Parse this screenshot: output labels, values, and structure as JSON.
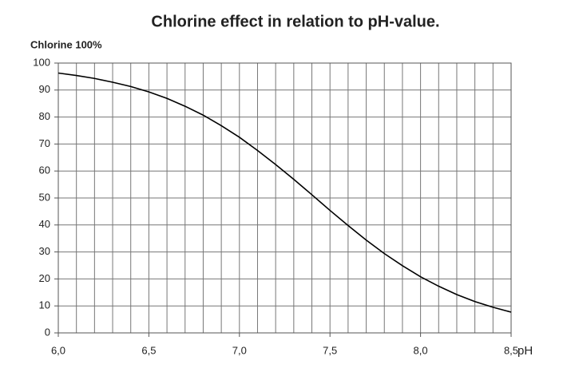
{
  "chart_data": {
    "type": "line",
    "title": "Chlorine effect in relation to pH-value.",
    "y_label": "Chlorine 100%",
    "x_label": "pH",
    "x": [
      6.0,
      6.1,
      6.2,
      6.3,
      6.4,
      6.5,
      6.6,
      6.7,
      6.8,
      6.9,
      7.0,
      7.1,
      7.2,
      7.3,
      7.4,
      7.5,
      7.6,
      7.7,
      7.8,
      7.9,
      8.0,
      8.1,
      8.2,
      8.3,
      8.4,
      8.5
    ],
    "series": [
      {
        "color": "#000000",
        "values": [
          96.3,
          95.4,
          94.3,
          92.9,
          91.3,
          89.3,
          86.9,
          84.0,
          80.7,
          76.8,
          72.5,
          67.6,
          62.4,
          56.9,
          51.2,
          45.4,
          39.8,
          34.4,
          29.4,
          24.9,
          20.8,
          17.3,
          14.2,
          11.6,
          9.5,
          7.7
        ]
      }
    ],
    "xlim": [
      6.0,
      8.5
    ],
    "ylim": [
      0,
      100
    ],
    "xticks": [
      {
        "value": 6.0,
        "label": "6,0"
      },
      {
        "value": 6.5,
        "label": "6,5"
      },
      {
        "value": 7.0,
        "label": "7,0"
      },
      {
        "value": 7.5,
        "label": "7,5"
      },
      {
        "value": 8.0,
        "label": "8,0"
      },
      {
        "value": 8.5,
        "label": "8,5"
      }
    ],
    "x_minor_ticks": [
      6.0,
      6.1,
      6.2,
      6.3,
      6.4,
      6.5,
      6.6,
      6.7,
      6.8,
      6.9,
      7.0,
      7.1,
      7.2,
      7.3,
      7.4,
      7.5,
      7.6,
      7.7,
      7.8,
      7.9,
      8.0,
      8.1,
      8.2,
      8.3,
      8.4,
      8.5
    ],
    "yticks": [
      0,
      10,
      20,
      30,
      40,
      50,
      60,
      70,
      80,
      90,
      100
    ],
    "grid": true
  }
}
